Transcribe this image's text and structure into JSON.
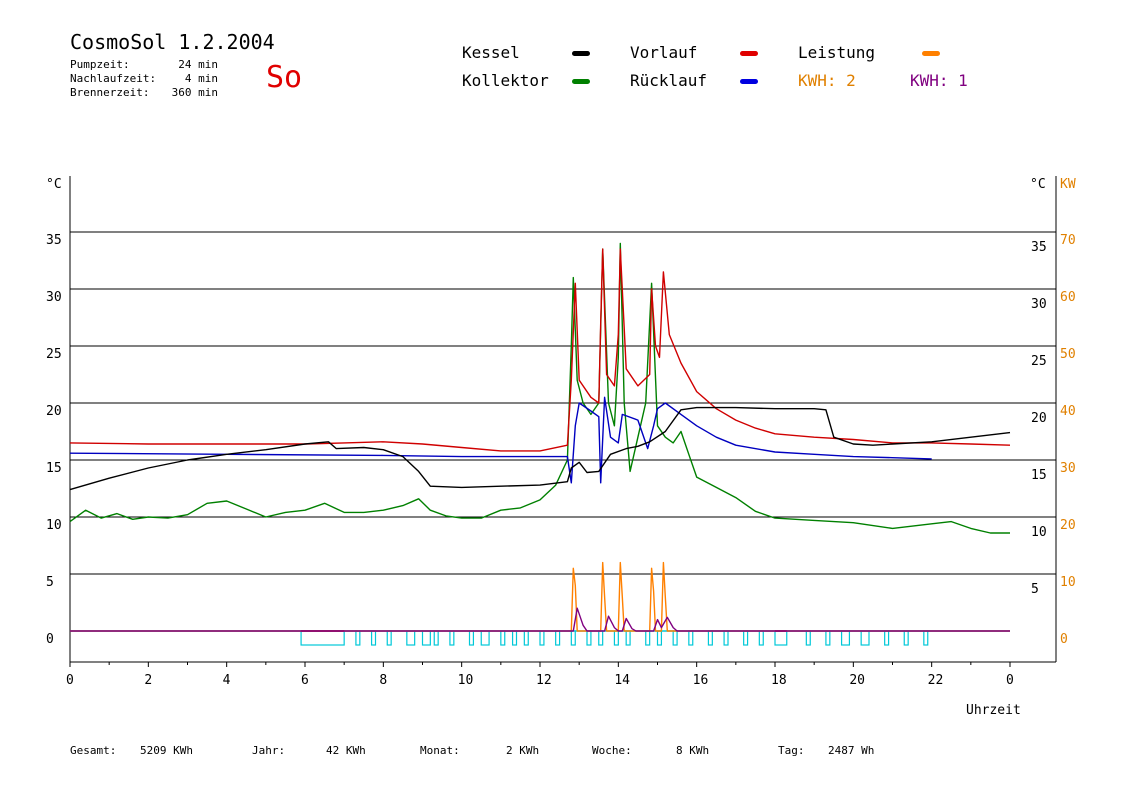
{
  "header": {
    "title": "CosmoSol 1.2.2004",
    "day": "So",
    "params": [
      {
        "label": "Pumpzeit:",
        "value": "24 min"
      },
      {
        "label": "Nachlaufzeit:",
        "value": "4 min"
      },
      {
        "label": "Brennerzeit:",
        "value": "360 min"
      }
    ]
  },
  "legend": {
    "kessel": {
      "label": "Kessel",
      "color": "#000000"
    },
    "kollektor": {
      "label": "Kollektor",
      "color": "#008000"
    },
    "vorlauf": {
      "label": "Vorlauf",
      "color": "#e00000"
    },
    "ruecklauf": {
      "label": "Rücklauf",
      "color": "#0000e0"
    },
    "leistung": {
      "label": "Leistung",
      "color": "#ff8000"
    },
    "kwh2": {
      "label": "KWH: 2",
      "color": "#e08000"
    },
    "kwh1": {
      "label": "KWH: 1",
      "color": "#800080"
    }
  },
  "footer": {
    "gesamt": {
      "label": "Gesamt:",
      "value": "5209 KWh"
    },
    "jahr": {
      "label": "Jahr:",
      "value": "42 KWh"
    },
    "monat": {
      "label": "Monat:",
      "value": "2 KWh"
    },
    "woche": {
      "label": "Woche:",
      "value": "8 KWh"
    },
    "tag": {
      "label": "Tag:",
      "value": "2487 Wh"
    }
  },
  "chart_data": {
    "type": "line",
    "xlabel": "Uhrzeit",
    "ylabel_left": "°C",
    "ylabel_right": "°C",
    "ylabel_right2": "KW",
    "xlim": [
      0,
      24
    ],
    "ylim": [
      0,
      35
    ],
    "xticks": [
      "0",
      "2",
      "4",
      "6",
      "8",
      "10",
      "12",
      "14",
      "16",
      "18",
      "20",
      "22",
      "0"
    ],
    "yticks_left": [
      "0",
      "5",
      "10",
      "15",
      "20",
      "25",
      "30",
      "35"
    ],
    "yticks_right": [
      "5",
      "10",
      "15",
      "20",
      "25",
      "30",
      "35"
    ],
    "yticks_kw": [
      "0",
      "10",
      "20",
      "30",
      "40",
      "50",
      "60",
      "70"
    ],
    "colors": {
      "kessel": "#000000",
      "kollektor": "#008000",
      "vorlauf": "#d00000",
      "ruecklauf": "#0000c0",
      "leistung": "#ff8000",
      "energy": "#800080",
      "pump": "#00c8d8",
      "burner": "#800080"
    },
    "series": [
      {
        "name": "Kessel",
        "key": "kessel",
        "points": [
          [
            0,
            12.4
          ],
          [
            1,
            13.4
          ],
          [
            2,
            14.3
          ],
          [
            3,
            15.0
          ],
          [
            4,
            15.5
          ],
          [
            5,
            15.9
          ],
          [
            6,
            16.4
          ],
          [
            6.6,
            16.6
          ],
          [
            6.8,
            16.0
          ],
          [
            7.5,
            16.1
          ],
          [
            8.0,
            15.9
          ],
          [
            8.5,
            15.3
          ],
          [
            8.9,
            14.0
          ],
          [
            9.2,
            12.7
          ],
          [
            10,
            12.6
          ],
          [
            11,
            12.7
          ],
          [
            12,
            12.8
          ],
          [
            12.7,
            13.1
          ],
          [
            12.8,
            14.3
          ],
          [
            13.0,
            14.8
          ],
          [
            13.2,
            13.9
          ],
          [
            13.5,
            14.0
          ],
          [
            13.8,
            15.5
          ],
          [
            14.2,
            16.0
          ],
          [
            14.5,
            16.2
          ],
          [
            14.8,
            16.6
          ],
          [
            15.2,
            17.5
          ],
          [
            15.6,
            19.4
          ],
          [
            16,
            19.6
          ],
          [
            17,
            19.6
          ],
          [
            18,
            19.5
          ],
          [
            19,
            19.5
          ],
          [
            19.3,
            19.4
          ],
          [
            19.5,
            17.0
          ],
          [
            20,
            16.4
          ],
          [
            20.5,
            16.3
          ],
          [
            21,
            16.4
          ],
          [
            22,
            16.6
          ],
          [
            23,
            17.0
          ],
          [
            24,
            17.4
          ]
        ]
      },
      {
        "name": "Vorlauf",
        "key": "vorlauf",
        "points": [
          [
            0,
            16.5
          ],
          [
            2,
            16.4
          ],
          [
            4,
            16.4
          ],
          [
            6,
            16.4
          ],
          [
            7,
            16.5
          ],
          [
            8,
            16.6
          ],
          [
            9,
            16.4
          ],
          [
            10,
            16.1
          ],
          [
            11,
            15.8
          ],
          [
            12,
            15.8
          ],
          [
            12.7,
            16.3
          ],
          [
            12.8,
            22.0
          ],
          [
            12.9,
            30.5
          ],
          [
            13.0,
            22.0
          ],
          [
            13.3,
            20.5
          ],
          [
            13.5,
            20.0
          ],
          [
            13.55,
            27.0
          ],
          [
            13.6,
            33.5
          ],
          [
            13.7,
            22.5
          ],
          [
            13.9,
            21.5
          ],
          [
            14.0,
            26.0
          ],
          [
            14.05,
            33.5
          ],
          [
            14.2,
            23.0
          ],
          [
            14.5,
            21.5
          ],
          [
            14.8,
            22.5
          ],
          [
            14.85,
            30.0
          ],
          [
            14.95,
            25.0
          ],
          [
            15.05,
            24.0
          ],
          [
            15.15,
            31.5
          ],
          [
            15.3,
            26.0
          ],
          [
            15.6,
            23.5
          ],
          [
            16,
            21.0
          ],
          [
            16.5,
            19.5
          ],
          [
            17,
            18.5
          ],
          [
            17.5,
            17.8
          ],
          [
            18,
            17.3
          ],
          [
            19,
            17.0
          ],
          [
            20,
            16.8
          ],
          [
            21,
            16.5
          ],
          [
            22,
            16.5
          ],
          [
            23,
            16.4
          ],
          [
            24,
            16.3
          ]
        ]
      },
      {
        "name": "Rücklauf",
        "key": "ruecklauf",
        "points": [
          [
            0,
            15.6
          ],
          [
            4,
            15.5
          ],
          [
            8,
            15.4
          ],
          [
            10,
            15.3
          ],
          [
            12,
            15.3
          ],
          [
            12.7,
            15.3
          ],
          [
            12.8,
            13.0
          ],
          [
            12.9,
            18.0
          ],
          [
            13.0,
            20.0
          ],
          [
            13.3,
            19.3
          ],
          [
            13.5,
            18.8
          ],
          [
            13.55,
            13.0
          ],
          [
            13.65,
            20.5
          ],
          [
            13.8,
            17.0
          ],
          [
            14.0,
            16.5
          ],
          [
            14.1,
            19.0
          ],
          [
            14.5,
            18.5
          ],
          [
            14.75,
            16.0
          ],
          [
            14.9,
            18.0
          ],
          [
            15.0,
            19.5
          ],
          [
            15.2,
            20.0
          ],
          [
            15.6,
            19.0
          ],
          [
            16,
            18.0
          ],
          [
            16.5,
            17.0
          ],
          [
            17,
            16.3
          ],
          [
            18,
            15.7
          ],
          [
            19,
            15.5
          ],
          [
            20,
            15.3
          ],
          [
            21,
            15.2
          ],
          [
            22,
            15.1
          ]
        ]
      },
      {
        "name": "Kollektor",
        "key": "kollektor",
        "points": [
          [
            0,
            9.6
          ],
          [
            0.4,
            10.6
          ],
          [
            0.8,
            9.9
          ],
          [
            1.2,
            10.3
          ],
          [
            1.6,
            9.8
          ],
          [
            2,
            10.0
          ],
          [
            2.5,
            9.9
          ],
          [
            3,
            10.2
          ],
          [
            3.5,
            11.2
          ],
          [
            4,
            11.4
          ],
          [
            4.5,
            10.7
          ],
          [
            5,
            10.0
          ],
          [
            5.5,
            10.4
          ],
          [
            6,
            10.6
          ],
          [
            6.5,
            11.2
          ],
          [
            7,
            10.4
          ],
          [
            7.5,
            10.4
          ],
          [
            8,
            10.6
          ],
          [
            8.5,
            11.0
          ],
          [
            8.9,
            11.6
          ],
          [
            9.2,
            10.6
          ],
          [
            9.6,
            10.1
          ],
          [
            10,
            9.9
          ],
          [
            10.5,
            9.9
          ],
          [
            11,
            10.6
          ],
          [
            11.5,
            10.8
          ],
          [
            12,
            11.5
          ],
          [
            12.4,
            12.8
          ],
          [
            12.7,
            15.0
          ],
          [
            12.8,
            25.0
          ],
          [
            12.85,
            31.0
          ],
          [
            12.95,
            22.0
          ],
          [
            13.1,
            20.0
          ],
          [
            13.3,
            19.0
          ],
          [
            13.5,
            20.0
          ],
          [
            13.6,
            33.5
          ],
          [
            13.75,
            20.0
          ],
          [
            13.9,
            18.0
          ],
          [
            14.0,
            24.0
          ],
          [
            14.05,
            34.0
          ],
          [
            14.15,
            20.0
          ],
          [
            14.3,
            14.0
          ],
          [
            14.5,
            17.0
          ],
          [
            14.7,
            20.0
          ],
          [
            14.85,
            30.5
          ],
          [
            15.0,
            18.0
          ],
          [
            15.2,
            17.0
          ],
          [
            15.4,
            16.5
          ],
          [
            15.6,
            17.5
          ],
          [
            15.8,
            15.5
          ],
          [
            16,
            13.5
          ],
          [
            16.5,
            12.6
          ],
          [
            17,
            11.7
          ],
          [
            17.5,
            10.5
          ],
          [
            18,
            9.9
          ],
          [
            19,
            9.7
          ],
          [
            20,
            9.5
          ],
          [
            21,
            9.0
          ],
          [
            22,
            9.4
          ],
          [
            22.5,
            9.6
          ],
          [
            23,
            9.0
          ],
          [
            23.5,
            8.6
          ],
          [
            24,
            8.6
          ]
        ]
      },
      {
        "name": "Leistung",
        "key": "leistung",
        "points": [
          [
            0,
            0
          ],
          [
            12.8,
            0
          ],
          [
            12.85,
            5.5
          ],
          [
            12.9,
            4.0
          ],
          [
            12.95,
            0
          ],
          [
            13.55,
            0
          ],
          [
            13.6,
            6.0
          ],
          [
            13.65,
            3.0
          ],
          [
            13.7,
            0
          ],
          [
            14.0,
            0
          ],
          [
            14.05,
            6.0
          ],
          [
            14.1,
            3.0
          ],
          [
            14.15,
            0
          ],
          [
            14.8,
            0
          ],
          [
            14.85,
            5.5
          ],
          [
            14.9,
            3.5
          ],
          [
            14.95,
            0
          ],
          [
            15.1,
            0
          ],
          [
            15.15,
            6.0
          ],
          [
            15.2,
            3.0
          ],
          [
            15.25,
            0
          ],
          [
            24,
            0
          ]
        ]
      },
      {
        "name": "KWH",
        "key": "energy",
        "points": [
          [
            0,
            0
          ],
          [
            12.85,
            0
          ],
          [
            12.95,
            2.0
          ],
          [
            13.1,
            0.5
          ],
          [
            13.2,
            0
          ],
          [
            13.65,
            0
          ],
          [
            13.75,
            1.3
          ],
          [
            13.9,
            0.3
          ],
          [
            14.0,
            0
          ],
          [
            14.1,
            0
          ],
          [
            14.2,
            1.1
          ],
          [
            14.35,
            0.2
          ],
          [
            14.45,
            0
          ],
          [
            14.9,
            0
          ],
          [
            15.0,
            1.0
          ],
          [
            15.1,
            0.3
          ],
          [
            15.25,
            1.2
          ],
          [
            15.4,
            0.3
          ],
          [
            15.5,
            0
          ],
          [
            24,
            0
          ]
        ]
      }
    ],
    "pump_intervals": [
      [
        5.9,
        7.0
      ],
      [
        7.3,
        7.4
      ],
      [
        7.7,
        7.8
      ],
      [
        8.1,
        8.2
      ],
      [
        8.6,
        8.8
      ],
      [
        9.0,
        9.2
      ],
      [
        9.3,
        9.4
      ],
      [
        9.7,
        9.8
      ],
      [
        10.2,
        10.3
      ],
      [
        10.5,
        10.7
      ],
      [
        11.0,
        11.1
      ],
      [
        11.3,
        11.4
      ],
      [
        11.6,
        11.7
      ],
      [
        12.0,
        12.1
      ],
      [
        12.4,
        12.5
      ],
      [
        12.8,
        12.9
      ],
      [
        13.2,
        13.3
      ],
      [
        13.5,
        13.6
      ],
      [
        13.9,
        14.0
      ],
      [
        14.2,
        14.3
      ],
      [
        14.7,
        14.8
      ],
      [
        15.0,
        15.1
      ],
      [
        15.4,
        15.5
      ],
      [
        15.8,
        15.9
      ],
      [
        16.3,
        16.4
      ],
      [
        16.7,
        16.8
      ],
      [
        17.2,
        17.3
      ],
      [
        17.6,
        17.7
      ],
      [
        18.0,
        18.3
      ],
      [
        18.8,
        18.9
      ],
      [
        19.3,
        19.4
      ],
      [
        19.7,
        19.9
      ],
      [
        20.2,
        20.4
      ],
      [
        20.8,
        20.9
      ],
      [
        21.3,
        21.4
      ],
      [
        21.8,
        21.9
      ]
    ],
    "burner_intervals": [
      [
        5.9,
        7.0
      ],
      [
        18.0,
        18.3
      ]
    ]
  }
}
